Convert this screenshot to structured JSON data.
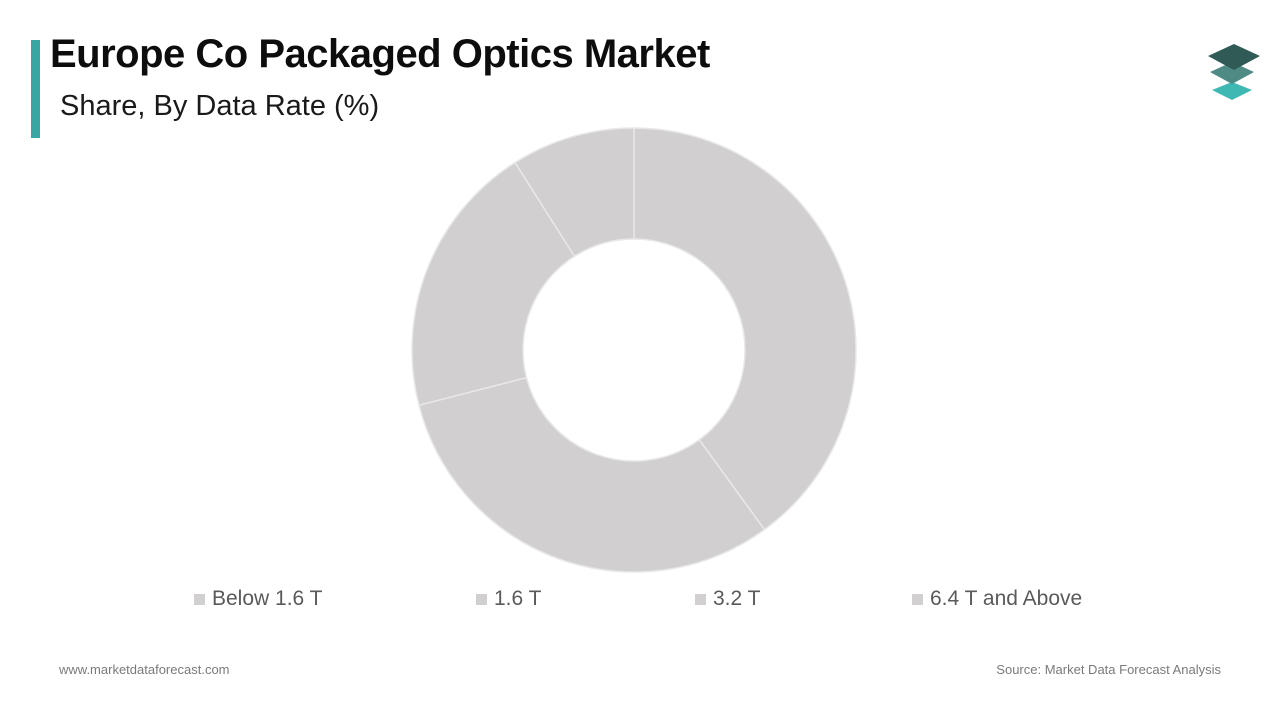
{
  "header": {
    "title": "Europe Co Packaged Optics Market",
    "subtitle": "Share, By Data Rate (%)"
  },
  "colors": {
    "accent": "#3aa6a3",
    "slice": "#d1cfd0",
    "slice_border": "#e8e8e8",
    "logo_dark": "#2f5a55",
    "logo_mid": "#4f8a85",
    "logo_light": "#3fb8b3"
  },
  "chart_data": {
    "type": "pie",
    "donut": true,
    "categories": [
      "Below 1.6 T",
      "1.6 T",
      "3.2 T",
      "6.4 T and Above"
    ],
    "values": [
      40,
      31,
      20,
      9
    ],
    "legend": "bottom"
  },
  "footer": {
    "website": "www.marketdataforecast.com",
    "source": "Source: Market Data Forecast Analysis"
  },
  "logo": {
    "icon": "stacked-layers-icon"
  }
}
